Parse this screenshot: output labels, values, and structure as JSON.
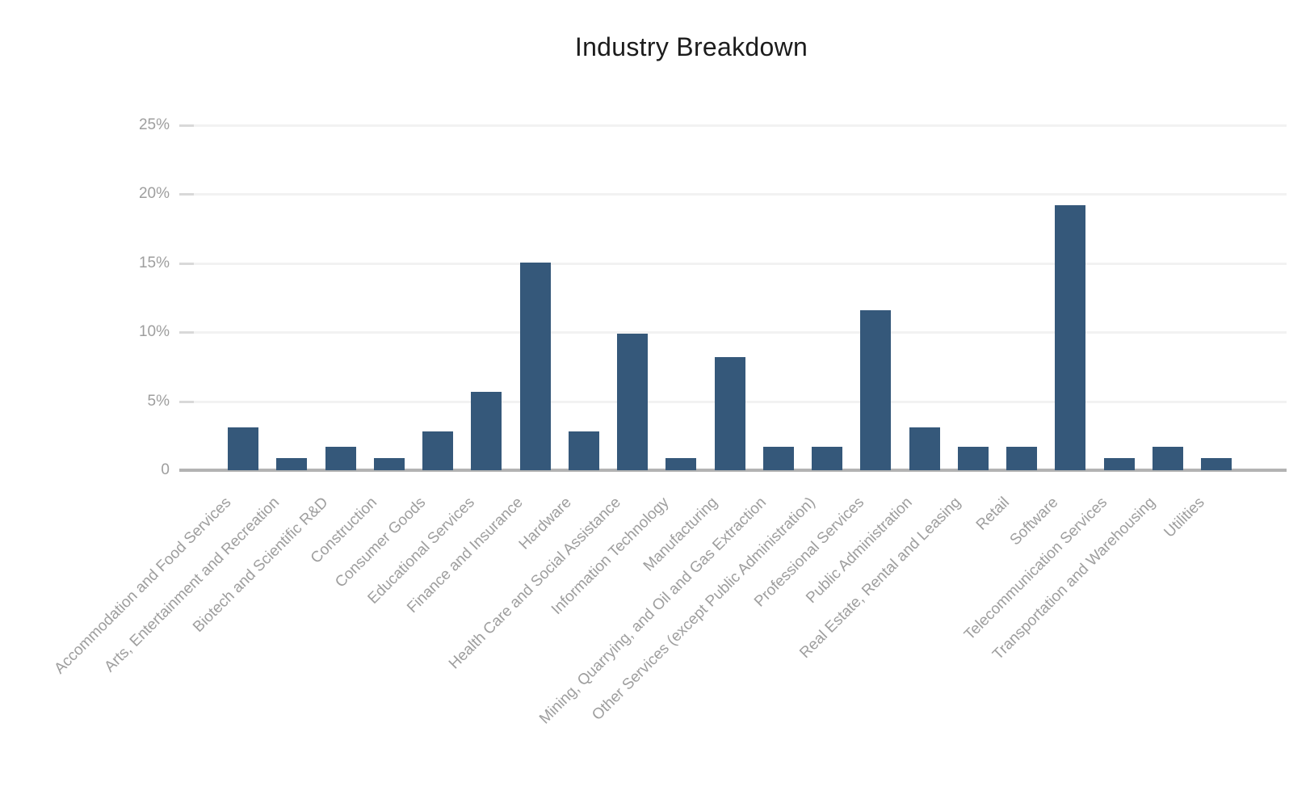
{
  "title": "Industry Breakdown",
  "colors": {
    "bar": "#35587a",
    "gridline": "#f2f2f2",
    "tick_dash": "#d9d9d9",
    "axis_line": "#b3b3b3",
    "tick_text": "#9e9e9e",
    "title_text": "#1c1c1c",
    "background": "#ffffff"
  },
  "chart_data": {
    "type": "bar",
    "title": "Industry Breakdown",
    "xlabel": "",
    "ylabel": "",
    "grid": true,
    "legend": "none",
    "ylim": [
      0,
      25
    ],
    "yticks": [
      {
        "value": 0,
        "label": "0"
      },
      {
        "value": 5,
        "label": "5%"
      },
      {
        "value": 10,
        "label": "10%"
      },
      {
        "value": 15,
        "label": "15%"
      },
      {
        "value": 20,
        "label": "20%"
      },
      {
        "value": 25,
        "label": "25%"
      }
    ],
    "categories": [
      "Accommodation and Food Services",
      "Arts, Entertainment and Recreation",
      "Biotech and Scientific R&D",
      "Construction",
      "Consumer Goods",
      "Educational Services",
      "Finance and Insurance",
      "Hardware",
      "Health Care and Social Assistance",
      "Information Technology",
      "Manufacturing",
      "Mining, Quarrying, and Oil and Gas Extraction",
      "Other Services (except Public Administration)",
      "Professional Services",
      "Public Administration",
      "Real Estate, Rental and Leasing",
      "Retail",
      "Software",
      "Telecommunication Services",
      "Transportation and Warehousing",
      "Utilities"
    ],
    "values": [
      3.1,
      0.9,
      1.7,
      0.9,
      2.8,
      5.7,
      15.0,
      2.8,
      9.9,
      0.9,
      8.2,
      1.7,
      1.7,
      11.6,
      3.1,
      1.7,
      1.7,
      19.2,
      0.9,
      1.7,
      0.9
    ],
    "value_unit": "%"
  }
}
